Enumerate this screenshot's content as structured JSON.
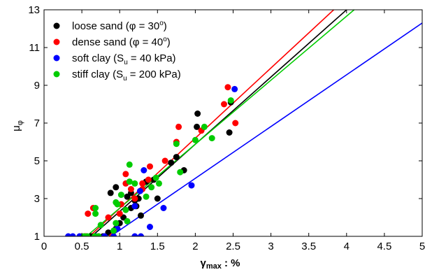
{
  "chart_data": {
    "type": "scatter",
    "xlabel": "γ",
    "xlabel_sub": "max",
    "xlabel_suffix": " : %",
    "ylabel": "μ",
    "ylabel_sub": "φ",
    "xlim": [
      0,
      5
    ],
    "ylim": [
      1,
      13
    ],
    "xticks": [
      0,
      0.5,
      1,
      1.5,
      2,
      2.5,
      3,
      3.5,
      4,
      4.5,
      5
    ],
    "xtick_labels": [
      "0",
      "0.5",
      "1",
      "1.5",
      "2",
      "2.5",
      "3",
      "3.5",
      "4",
      "4.5",
      "5"
    ],
    "yticks": [
      1,
      3,
      5,
      7,
      9,
      11,
      13
    ],
    "ytick_labels": [
      "1",
      "3",
      "5",
      "7",
      "9",
      "11",
      "13"
    ],
    "grid": false,
    "legend_position": "top-left",
    "series": [
      {
        "name": "loose sand (φ = 30",
        "name_sup": "o",
        "name_suffix": ")",
        "color": "#000000",
        "points": [
          [
            0.62,
            1.0
          ],
          [
            0.68,
            1.0
          ],
          [
            0.78,
            1.0
          ],
          [
            0.85,
            1.2
          ],
          [
            0.95,
            1.4
          ],
          [
            1.0,
            1.7
          ],
          [
            1.05,
            2.0
          ],
          [
            1.15,
            2.5
          ],
          [
            1.22,
            2.6
          ],
          [
            1.28,
            2.1
          ],
          [
            1.1,
            3.1
          ],
          [
            1.2,
            2.9
          ],
          [
            1.25,
            3.0
          ],
          [
            0.88,
            3.3
          ],
          [
            0.95,
            3.6
          ],
          [
            1.15,
            3.3
          ],
          [
            1.35,
            3.9
          ],
          [
            1.45,
            4.0
          ],
          [
            1.5,
            3.0
          ],
          [
            1.68,
            4.9
          ],
          [
            1.75,
            5.2
          ],
          [
            1.85,
            4.5
          ],
          [
            2.02,
            6.8
          ],
          [
            2.03,
            7.5
          ],
          [
            2.45,
            6.5
          ],
          [
            2.47,
            8.1
          ]
        ],
        "line": [
          [
            0.63,
            1.0
          ],
          [
            4.0,
            13.0
          ]
        ]
      },
      {
        "name": "dense sand (φ = 40",
        "name_sup": "o",
        "name_suffix": ")",
        "color": "#ff0000",
        "points": [
          [
            0.55,
            1.0
          ],
          [
            0.72,
            1.0
          ],
          [
            0.9,
            1.0
          ],
          [
            0.58,
            2.2
          ],
          [
            0.65,
            2.5
          ],
          [
            0.85,
            2.0
          ],
          [
            1.0,
            2.2
          ],
          [
            1.02,
            2.7
          ],
          [
            1.08,
            3.8
          ],
          [
            1.08,
            4.3
          ],
          [
            1.15,
            3.5
          ],
          [
            1.2,
            3.0
          ],
          [
            1.3,
            3.5
          ],
          [
            1.3,
            3.8
          ],
          [
            1.38,
            4.0
          ],
          [
            1.4,
            4.7
          ],
          [
            1.6,
            5.0
          ],
          [
            1.75,
            6.0
          ],
          [
            1.78,
            6.8
          ],
          [
            2.08,
            6.6
          ],
          [
            2.38,
            8.0
          ],
          [
            2.43,
            8.9
          ],
          [
            2.53,
            7.0
          ]
        ],
        "line": [
          [
            0.6,
            1.0
          ],
          [
            3.83,
            13.0
          ]
        ]
      },
      {
        "name": "soft clay (S",
        "name_sub": "u",
        "name_suffix": " = 40 kPa)",
        "color": "#0000ff",
        "points": [
          [
            0.32,
            1.0
          ],
          [
            0.38,
            1.0
          ],
          [
            0.47,
            1.0
          ],
          [
            0.68,
            1.0
          ],
          [
            0.8,
            1.0
          ],
          [
            0.92,
            1.0
          ],
          [
            1.2,
            1.0
          ],
          [
            1.28,
            1.0
          ],
          [
            0.97,
            1.4
          ],
          [
            1.4,
            1.5
          ],
          [
            1.2,
            2.6
          ],
          [
            1.27,
            3.4
          ],
          [
            1.32,
            4.5
          ],
          [
            1.58,
            2.5
          ],
          [
            1.95,
            3.7
          ],
          [
            2.52,
            8.8
          ]
        ],
        "line": [
          [
            0.88,
            1.0
          ],
          [
            5.0,
            12.3
          ]
        ]
      },
      {
        "name": "stiff clay (S",
        "name_sub": "u",
        "name_suffix": " = 200 kPa)",
        "color": "#00cc00",
        "points": [
          [
            0.53,
            1.0
          ],
          [
            0.57,
            1.0
          ],
          [
            0.67,
            1.0
          ],
          [
            0.72,
            1.0
          ],
          [
            0.75,
            1.6
          ],
          [
            0.68,
            2.2
          ],
          [
            0.68,
            2.5
          ],
          [
            0.92,
            1.3
          ],
          [
            0.95,
            1.7
          ],
          [
            0.95,
            2.8
          ],
          [
            0.97,
            2.7
          ],
          [
            1.02,
            3.2
          ],
          [
            1.08,
            2.4
          ],
          [
            1.1,
            1.8
          ],
          [
            1.13,
            3.9
          ],
          [
            1.13,
            4.8
          ],
          [
            1.2,
            3.8
          ],
          [
            1.35,
            3.1
          ],
          [
            1.42,
            3.6
          ],
          [
            1.48,
            4.1
          ],
          [
            1.52,
            3.8
          ],
          [
            1.75,
            5.9
          ],
          [
            1.8,
            4.4
          ],
          [
            2.0,
            6.1
          ],
          [
            2.12,
            6.8
          ],
          [
            2.22,
            6.2
          ],
          [
            2.47,
            8.2
          ]
        ],
        "line": [
          [
            0.56,
            1.0
          ],
          [
            4.1,
            13.0
          ]
        ]
      }
    ]
  }
}
